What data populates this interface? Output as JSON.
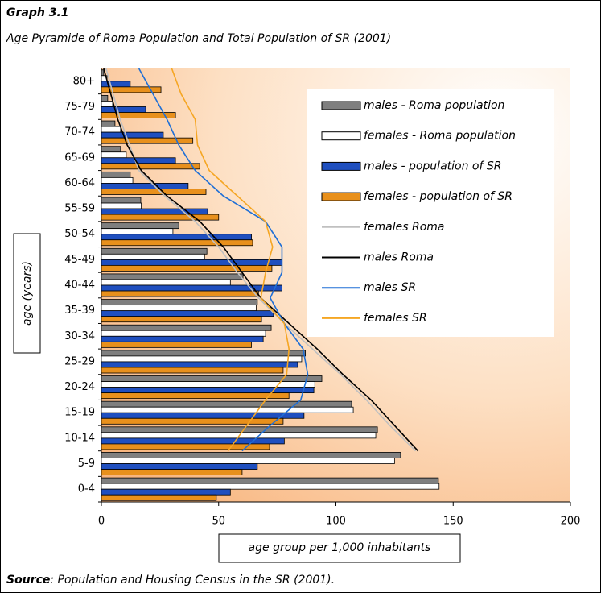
{
  "chart_data": {
    "type": "bar",
    "orientation": "horizontal",
    "title": "Graph 3.1",
    "subtitle": "Age Pyramide of Roma Population and Total Population of SR (2001)",
    "xlabel": "age group per 1,000 inhabitants",
    "ylabel": "age (years)",
    "source_label": "Source",
    "source_text": ": Population and Housing Census in the SR (2001).",
    "categories": [
      "0-4",
      "5-9",
      "10-14",
      "15-19",
      "20-24",
      "25-29",
      "30-34",
      "35-39",
      "40-44",
      "45-49",
      "50-54",
      "55-59",
      "60-64",
      "65-69",
      "70-74",
      "75-79",
      "80+"
    ],
    "xlim": [
      0,
      200
    ],
    "xticks": [
      0,
      50,
      100,
      150,
      200
    ],
    "series": [
      {
        "name": "males - Roma population",
        "kind": "bar",
        "color": "#7f7f7f",
        "values": [
          143.7,
          127.6,
          117.7,
          106.7,
          94,
          87,
          72.4,
          66.5,
          60.4,
          45,
          33,
          16.8,
          12.3,
          8.2,
          5.8,
          2.7,
          1
        ]
      },
      {
        "name": "females - Roma population",
        "kind": "bar",
        "color": "#ffffff",
        "values": [
          144,
          125,
          117,
          107.4,
          91,
          85.4,
          70,
          66,
          55,
          44,
          30.5,
          17,
          13.4,
          10.6,
          8.2,
          4.8,
          2.4
        ]
      },
      {
        "name": "males - population of SR",
        "kind": "bar",
        "color": "#1f4fbf",
        "values": [
          55,
          66.5,
          78,
          86.4,
          90.6,
          83.7,
          69,
          73.4,
          77,
          77,
          64,
          45.3,
          37,
          31.6,
          26.4,
          18.9,
          12.3
        ]
      },
      {
        "name": "females - population of SR",
        "kind": "bar",
        "color": "#e8901c",
        "values": [
          49,
          60,
          71.7,
          77.5,
          80,
          77.5,
          64,
          68.3,
          67,
          72.7,
          64.5,
          50,
          44.6,
          41.9,
          39,
          31.6,
          25.4
        ]
      },
      {
        "name": "females Roma",
        "kind": "line",
        "color": "#c0c0c0",
        "values": [
          null,
          134,
          123,
          113,
          102,
          90,
          78,
          67,
          58,
          50,
          40,
          27,
          16,
          12,
          8,
          5,
          2
        ]
      },
      {
        "name": "males Roma",
        "kind": "line",
        "color": "#000000",
        "values": [
          null,
          135,
          125,
          115,
          103,
          92,
          80,
          68,
          60,
          52,
          42,
          28,
          17,
          11,
          7,
          4,
          1
        ]
      },
      {
        "name": "males SR",
        "kind": "line",
        "color": "#1f6fd6",
        "values": [
          null,
          60,
          72,
          85,
          88,
          86,
          78,
          72,
          77,
          77,
          70,
          52,
          40,
          33,
          28,
          22,
          16
        ]
      },
      {
        "name": "females SR",
        "kind": "line",
        "color": "#f5a623",
        "values": [
          null,
          54,
          62,
          70,
          79,
          80,
          78,
          68,
          70,
          73,
          70,
          58,
          46,
          41,
          40,
          34,
          30
        ]
      }
    ]
  }
}
